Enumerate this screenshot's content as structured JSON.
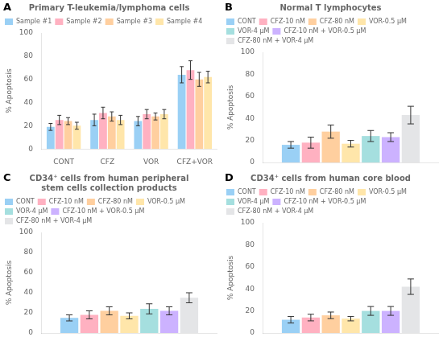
{
  "chart_data": [
    {
      "type": "bar",
      "annotation": "A",
      "title": "Primary T-leukemia/lymphoma cells",
      "ylabel": "% Apoptosis",
      "categories": [
        "CONT",
        "CFZ",
        "VOR",
        "CFZ+VOR"
      ],
      "series": [
        {
          "name": "Sample #1",
          "values": [
            19,
            25,
            24,
            64
          ],
          "errors": [
            3,
            5,
            4,
            7
          ]
        },
        {
          "name": "Sample #2",
          "values": [
            25,
            31,
            30,
            68
          ],
          "errors": [
            4,
            5,
            4,
            8
          ]
        },
        {
          "name": "Sample #3",
          "values": [
            24,
            28,
            28,
            60
          ],
          "errors": [
            3,
            4,
            3,
            6
          ]
        },
        {
          "name": "Sample #4",
          "values": [
            20,
            25,
            30,
            62
          ],
          "errors": [
            3,
            4,
            4,
            5
          ]
        }
      ],
      "ylim": [
        0,
        100
      ],
      "yticks": [
        0,
        20,
        40,
        60,
        80,
        100
      ],
      "grid": false,
      "legend": "upper left"
    },
    {
      "type": "bar",
      "annotation": "B",
      "title": "Normal T lymphocytes",
      "ylabel": "% Apoptosis",
      "categories": [
        null
      ],
      "series": [
        {
          "name": "CONT",
          "values": [
            16
          ],
          "errors": [
            3
          ]
        },
        {
          "name": "CFZ-10 nM",
          "values": [
            18
          ],
          "errors": [
            5
          ]
        },
        {
          "name": "CFZ-80 nM",
          "values": [
            28
          ],
          "errors": [
            6
          ]
        },
        {
          "name": "VOR-0.5 μM",
          "values": [
            17
          ],
          "errors": [
            3
          ]
        },
        {
          "name": "VOR-4 μM",
          "values": [
            24
          ],
          "errors": [
            5
          ]
        },
        {
          "name": "CFZ-10 nM + VOR-0.5 μM",
          "values": [
            23
          ],
          "errors": [
            4
          ]
        },
        {
          "name": "CFZ-80 nM + VOR-4 μM",
          "values": [
            43
          ],
          "errors": [
            8
          ]
        }
      ],
      "ylim": [
        0,
        100
      ],
      "yticks": [
        0,
        20,
        40,
        60,
        80,
        100
      ],
      "grid": false,
      "legend": "upper left",
      "tick_labels": "y"
    },
    {
      "type": "bar",
      "annotation": "C",
      "title": "CD34⁺ cells from human peripheral\nstem cells collection products",
      "ylabel": "% Apoptosis",
      "categories": [
        null
      ],
      "series": [
        {
          "name": "CONT",
          "values": [
            15
          ],
          "errors": [
            3
          ]
        },
        {
          "name": "CFZ-10 nM",
          "values": [
            18
          ],
          "errors": [
            4
          ]
        },
        {
          "name": "CFZ-80 nM",
          "values": [
            22
          ],
          "errors": [
            4
          ]
        },
        {
          "name": "VOR-0.5 μM",
          "values": [
            17
          ],
          "errors": [
            3
          ]
        },
        {
          "name": "VOR-4 μM",
          "values": [
            24
          ],
          "errors": [
            5
          ]
        },
        {
          "name": "CFZ-10 nM + VOR-0.5 μM",
          "values": [
            22
          ],
          "errors": [
            4
          ]
        },
        {
          "name": "CFZ-80 nM + VOR-4 μM",
          "values": [
            35
          ],
          "errors": [
            5
          ]
        }
      ],
      "ylim": [
        0,
        100
      ],
      "yticks": [
        0,
        20,
        40,
        60,
        80,
        100
      ],
      "grid": false,
      "legend": "upper left",
      "tick_labels": "y"
    },
    {
      "type": "bar",
      "annotation": "D",
      "title": "CD34⁺ cells from human core blood",
      "ylabel": "% Apoptosis",
      "categories": [
        null
      ],
      "series": [
        {
          "name": "CONT",
          "values": [
            12
          ],
          "errors": [
            3
          ]
        },
        {
          "name": "CFZ-10 nM",
          "values": [
            14
          ],
          "errors": [
            3
          ]
        },
        {
          "name": "CFZ-80 nM",
          "values": [
            16
          ],
          "errors": [
            3
          ]
        },
        {
          "name": "VOR-0.5 μM",
          "values": [
            13
          ],
          "errors": [
            2
          ]
        },
        {
          "name": "VOR-4 μM",
          "values": [
            20
          ],
          "errors": [
            4
          ]
        },
        {
          "name": "CFZ-10 nM + VOR-0.5 μM",
          "values": [
            20
          ],
          "errors": [
            4
          ]
        },
        {
          "name": "CFZ-80 nM + VOR-4 μM",
          "values": [
            42
          ],
          "errors": [
            7
          ]
        }
      ],
      "ylim": [
        0,
        100
      ],
      "yticks": [
        0,
        20,
        40,
        60,
        80,
        100
      ],
      "grid": false,
      "legend": "upper left",
      "tick_labels": "y"
    }
  ]
}
